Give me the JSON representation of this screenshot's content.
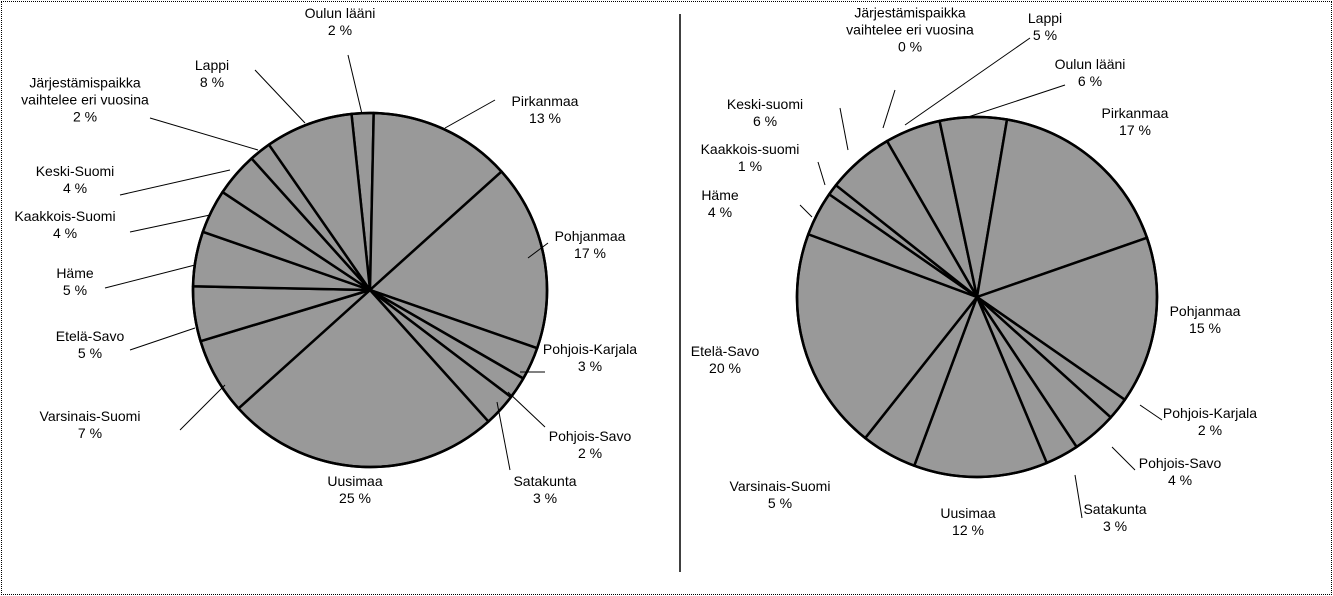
{
  "chart_data": [
    {
      "type": "pie",
      "color": "#999999",
      "categories": [
        "Oulun lääni",
        "Pirkanmaa",
        "Pohjanmaa",
        "Pohjois-Karjala",
        "Pohjois-Savo",
        "Satakunta",
        "Uusimaa",
        "Varsinais-Suomi",
        "Etelä-Savo",
        "Häme",
        "Kaakkois-Suomi",
        "Keski-Suomi",
        "Järjestämispaikka vaihtelee eri vuosina",
        "Lappi"
      ],
      "values": [
        2,
        13,
        17,
        3,
        2,
        3,
        25,
        7,
        5,
        5,
        4,
        4,
        2,
        8
      ],
      "value_labels": [
        "2 %",
        "13 %",
        "17 %",
        "3 %",
        "2 %",
        "3 %",
        "25 %",
        "7 %",
        "5 %",
        "5 %",
        "4 %",
        "4 %",
        "2 %",
        "8 %"
      ]
    },
    {
      "type": "pie",
      "color": "#999999",
      "categories": [
        "Järjestämispaikka vaihtelee eri vuosina",
        "Lappi",
        "Oulun lääni",
        "Pirkanmaa",
        "Pohjanmaa",
        "Pohjois-Karjala",
        "Pohjois-Savo",
        "Satakunta",
        "Uusimaa",
        "Varsinais-Suomi",
        "Etelä-Savo",
        "Häme",
        "Kaakkois-suomi",
        "Keski-suomi"
      ],
      "values": [
        0,
        5,
        6,
        17,
        15,
        2,
        4,
        3,
        12,
        5,
        20,
        4,
        1,
        6
      ],
      "value_labels": [
        "0 %",
        "5 %",
        "6 %",
        "17 %",
        "15 %",
        "2 %",
        "4 %",
        "3 %",
        "12 %",
        "5 %",
        "20 %",
        "4 %",
        "1 %",
        "6 %"
      ]
    }
  ]
}
